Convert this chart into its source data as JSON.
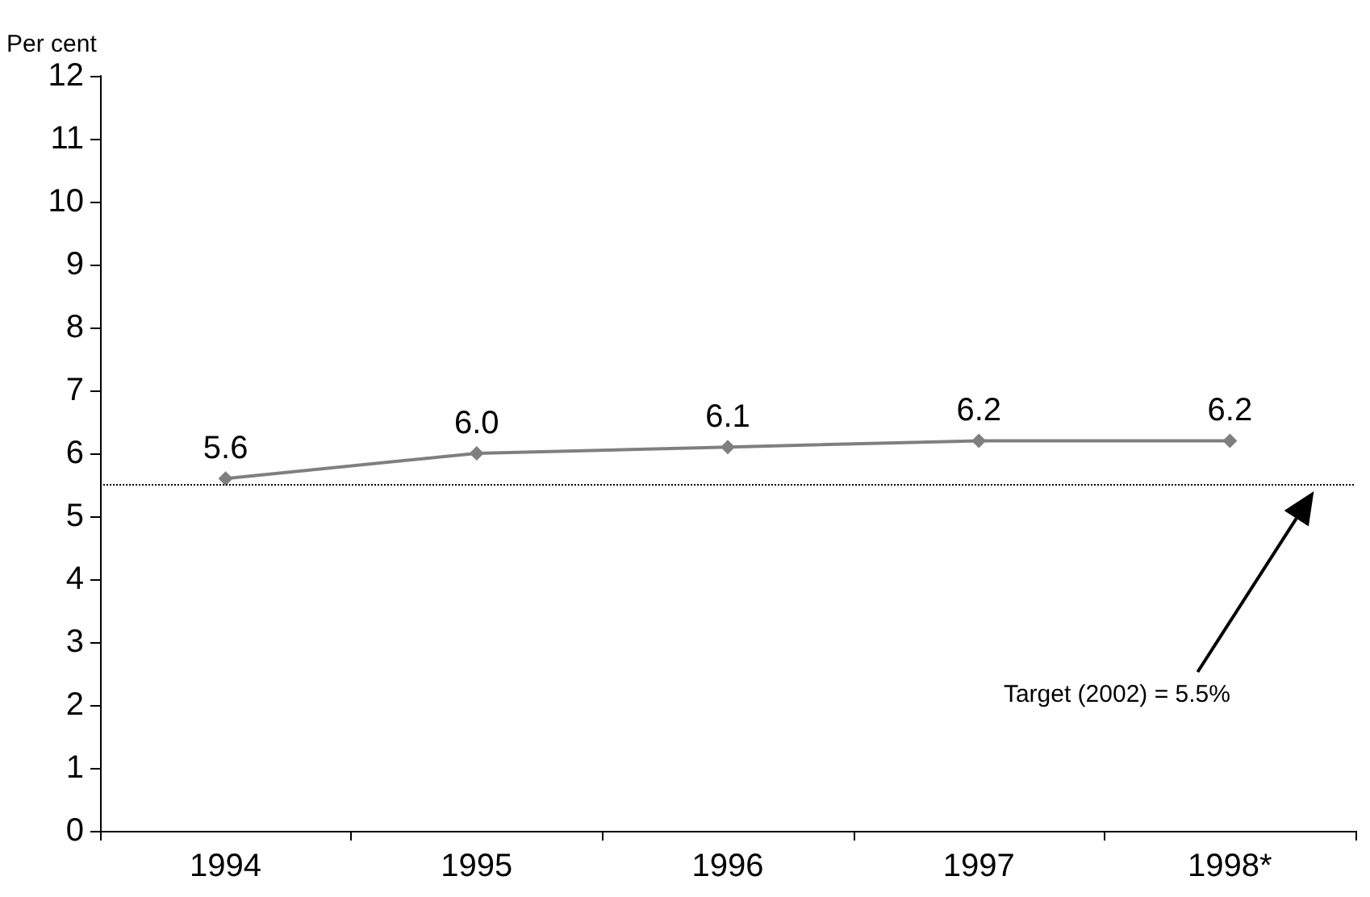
{
  "chart_data": {
    "type": "line",
    "ylabel": "Per cent",
    "categories": [
      "1994",
      "1995",
      "1996",
      "1997",
      "1998*"
    ],
    "series": [
      {
        "color": "#7f7f7f",
        "values": [
          5.6,
          6.0,
          6.1,
          6.2,
          6.2
        ],
        "value_labels": [
          "5.6",
          "6.0",
          "6.1",
          "6.2",
          "6.2"
        ]
      }
    ],
    "ylim": [
      0,
      12
    ],
    "yticks": [
      0,
      1,
      2,
      3,
      4,
      5,
      6,
      7,
      8,
      9,
      10,
      11,
      12
    ],
    "ref_lines": [
      {
        "axis": "y",
        "value": 5.5,
        "label": "Target (2002) = 5.5%",
        "color": "#000000",
        "line_style": "dotted"
      }
    ],
    "grid": false,
    "marker": "diamond",
    "line_style": "solid"
  }
}
